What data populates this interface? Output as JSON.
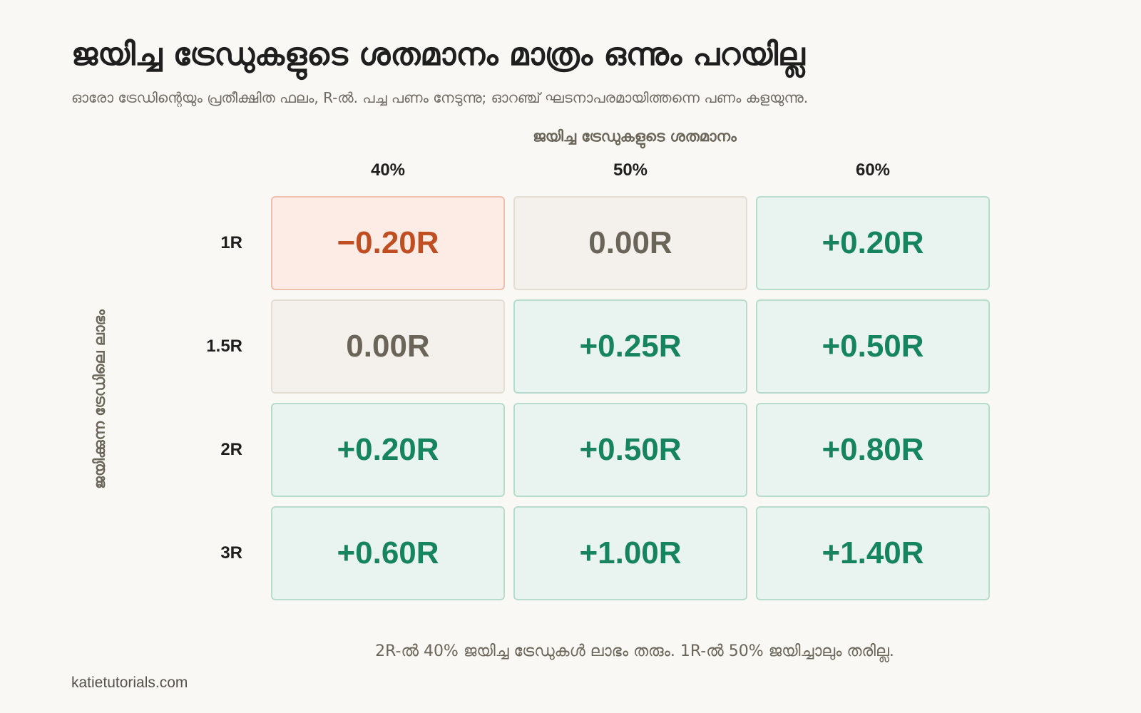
{
  "title": "ജയിച്ച ട്രേഡുകളുടെ ശതമാനം മാത്രം ഒന്നും പറയില്ല",
  "subtitle": "ഓരോ ട്രേഡിന്റെയും പ്രതീക്ഷിത ഫലം, R-ൽ. പച്ച പണം നേടുന്നു; ഓറഞ്ച് ഘടനാപരമായിത്തന്നെ പണം കളയുന്നു.",
  "footnote": "2R-ൽ 40% ജയിച്ച ട്രേഡുകൾ ലാഭം തരും. 1R-ൽ 50% ജയിച്ചാലും തരില്ല.",
  "source": "katietutorials.com",
  "colors": {
    "positive_text": "#16845f",
    "positive_fill": "#e9f3ef",
    "zero_text": "#6b6559",
    "zero_fill": "#f4f1ec",
    "negative_text": "#bf4f23",
    "negative_fill": "#fdece5"
  },
  "chart_data": {
    "type": "heatmap",
    "title": "ജയിച്ച ട്രേഡുകളുടെ ശതമാനം മാത്രം ഒന്നും പറയില്ല",
    "col_axis_label": "ജയിച്ച ട്രേഡുകളുടെ ശതമാനം",
    "row_axis_label": "ജയിക്കുന്ന ട്രേഡിലെ ലാഭം",
    "columns": [
      "40%",
      "50%",
      "60%"
    ],
    "rows": [
      "1R",
      "1.5R",
      "2R",
      "3R"
    ],
    "values": [
      [
        -0.2,
        0.0,
        0.2
      ],
      [
        0.0,
        0.25,
        0.5
      ],
      [
        0.2,
        0.5,
        0.8
      ],
      [
        0.6,
        1.0,
        1.4
      ]
    ],
    "cell_labels": [
      [
        "−0.20R",
        "0.00R",
        "+0.20R"
      ],
      [
        "0.00R",
        "+0.25R",
        "+0.50R"
      ],
      [
        "+0.20R",
        "+0.50R",
        "+0.80R"
      ],
      [
        "+0.60R",
        "+1.00R",
        "+1.40R"
      ]
    ],
    "unit": "R"
  }
}
